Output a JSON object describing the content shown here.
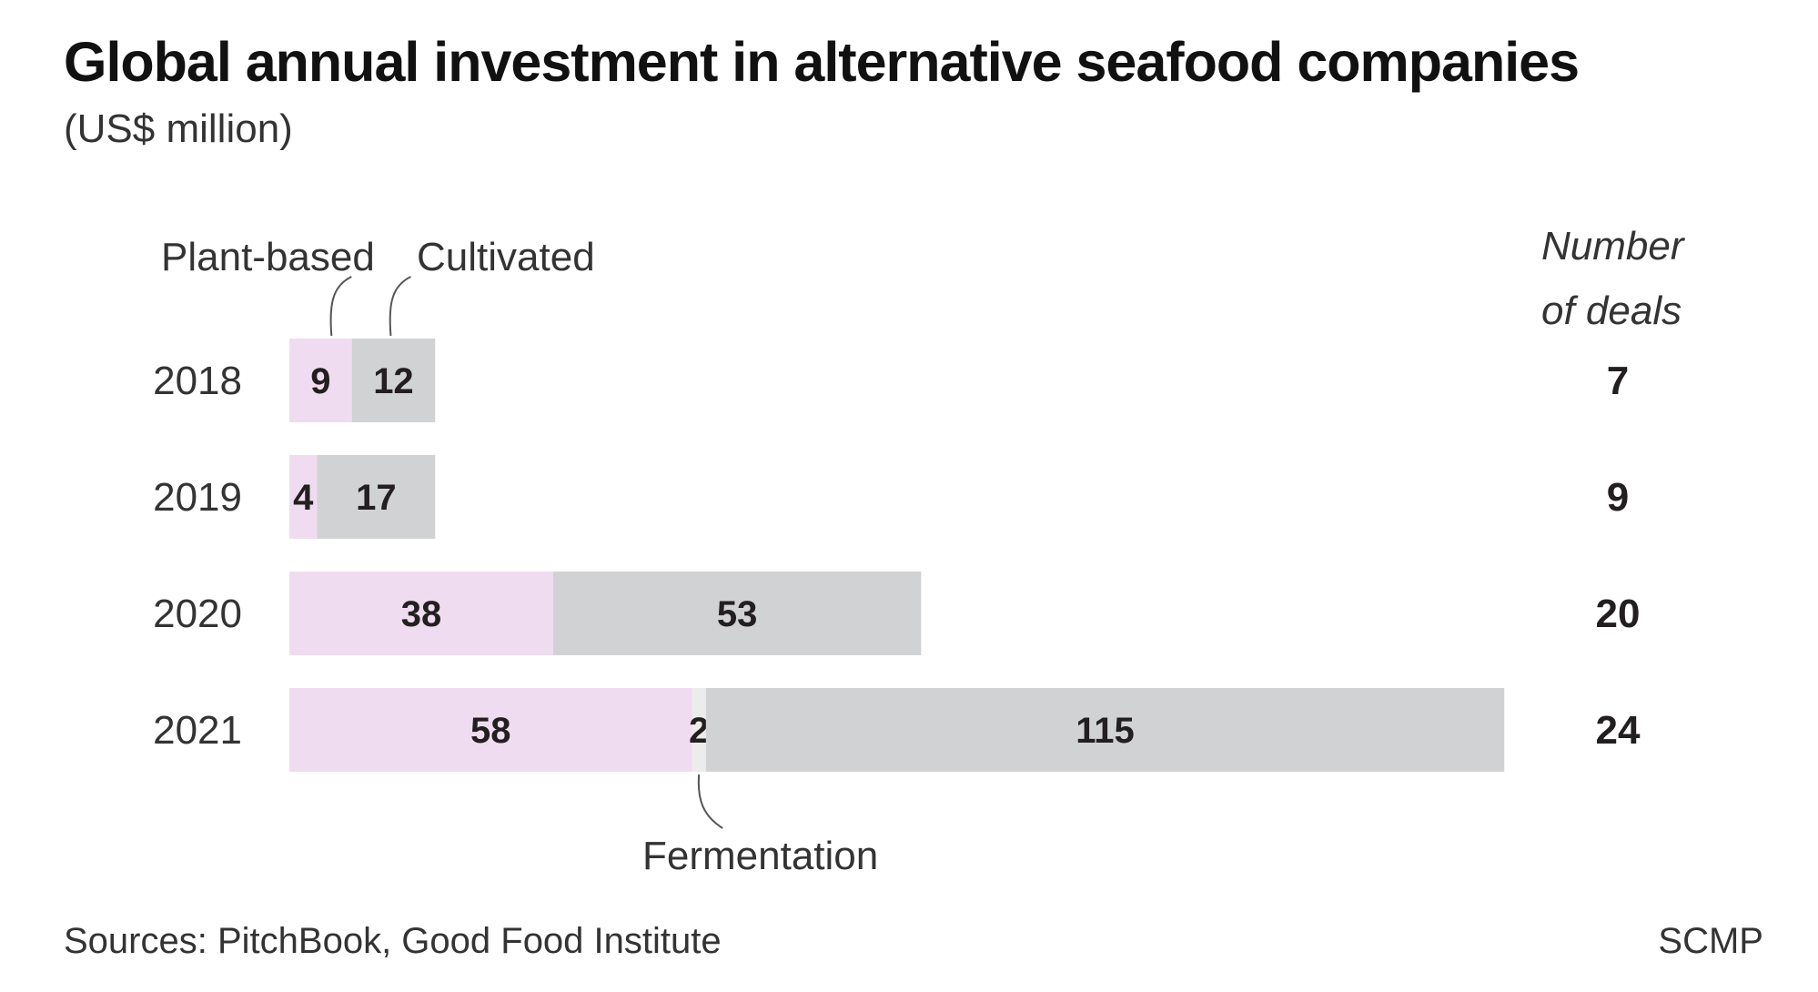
{
  "title": "Global annual investment in alternative seafood companies",
  "subtitle": "(US$ million)",
  "source": "Sources: PitchBook, Good Food Institute",
  "brand": "SCMP",
  "colors": {
    "plant_based": "#f0dcf0",
    "fermentation": "#ececec",
    "cultivated": "#d1d2d4",
    "text": "#231f20"
  },
  "chart_data": {
    "type": "bar",
    "orientation": "horizontal",
    "stacked": true,
    "categories": [
      "2018",
      "2019",
      "2020",
      "2021"
    ],
    "series": [
      {
        "name": "Plant-based",
        "values": [
          9,
          4,
          38,
          58
        ]
      },
      {
        "name": "Fermentation",
        "values": [
          0,
          0,
          0,
          2
        ]
      },
      {
        "name": "Cultivated",
        "values": [
          12,
          17,
          53,
          115
        ]
      }
    ],
    "deals_header": [
      "Number",
      "of deals"
    ],
    "deals": [
      7,
      9,
      20,
      24
    ],
    "annotations": [
      "Plant-based",
      "Cultivated",
      "Fermentation"
    ],
    "legend": "none",
    "grid": false
  }
}
